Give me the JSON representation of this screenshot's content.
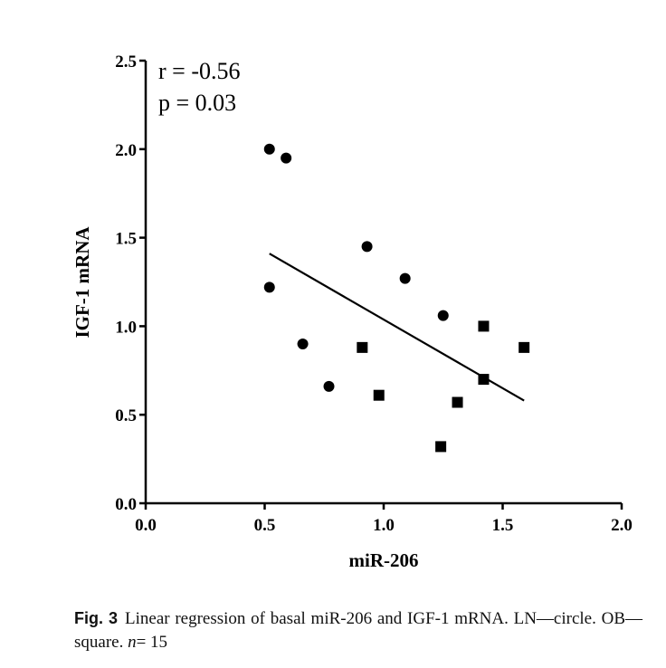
{
  "chart_data": {
    "type": "scatter",
    "title": "",
    "xlabel": "miR-206",
    "ylabel": "IGF-1 mRNA",
    "xlim": [
      0.0,
      2.0
    ],
    "ylim": [
      0.0,
      2.5
    ],
    "xticks": [
      0.0,
      0.5,
      1.0,
      1.5,
      2.0
    ],
    "yticks": [
      0.0,
      0.5,
      1.0,
      1.5,
      2.0,
      2.5
    ],
    "xtick_labels": [
      "0.0",
      "0.5",
      "1.0",
      "1.5",
      "2.0"
    ],
    "ytick_labels": [
      "0.0",
      "0.5",
      "1.0",
      "1.5",
      "2.0",
      "2.5"
    ],
    "grid": false,
    "annotations": [
      "r = -0.56",
      "p = 0.03"
    ],
    "series": [
      {
        "marker": "circle",
        "points": [
          {
            "x": 0.52,
            "y": 2.0
          },
          {
            "x": 0.59,
            "y": 1.95
          },
          {
            "x": 0.52,
            "y": 1.22
          },
          {
            "x": 0.66,
            "y": 0.9
          },
          {
            "x": 0.77,
            "y": 0.66
          },
          {
            "x": 0.93,
            "y": 1.45
          },
          {
            "x": 1.09,
            "y": 1.27
          },
          {
            "x": 1.25,
            "y": 1.06
          }
        ]
      },
      {
        "marker": "square",
        "points": [
          {
            "x": 0.91,
            "y": 0.88
          },
          {
            "x": 0.98,
            "y": 0.61
          },
          {
            "x": 1.24,
            "y": 0.32
          },
          {
            "x": 1.31,
            "y": 0.57
          },
          {
            "x": 1.42,
            "y": 1.0
          },
          {
            "x": 1.42,
            "y": 0.7
          },
          {
            "x": 1.59,
            "y": 0.88
          }
        ]
      }
    ],
    "regression_line": {
      "start": {
        "x": 0.52,
        "y": 1.41
      },
      "end": {
        "x": 1.59,
        "y": 0.58
      }
    }
  },
  "caption": {
    "label": "Fig. 3",
    "text_before_n": "Linear regression of basal miR-206 and IGF-1 mRNA. LN—circle. OB—square.",
    "n_symbol": "n",
    "n_value": "= 15"
  }
}
